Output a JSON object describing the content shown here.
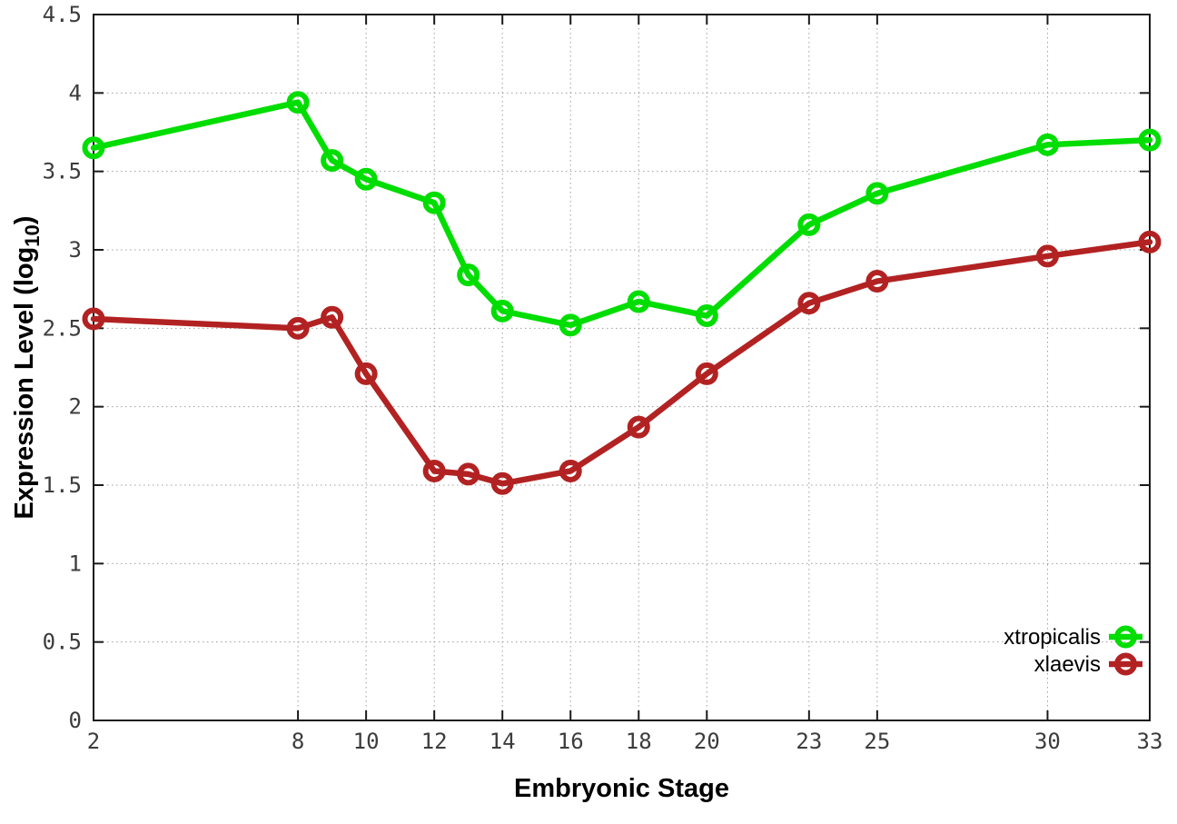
{
  "chart_data": {
    "type": "line",
    "title": "",
    "xlabel": "Embryonic Stage",
    "ylabel": {
      "prefix": "Expression Level (log",
      "subscript": "10",
      "suffix": ")"
    },
    "xlim": [
      2,
      33
    ],
    "ylim": [
      0,
      4.5
    ],
    "grid": true,
    "legend_position": "bottom-right",
    "x_ticks": [
      {
        "value": 2,
        "label": "2"
      },
      {
        "value": 8,
        "label": "8"
      },
      {
        "value": 10,
        "label": "10"
      },
      {
        "value": 12,
        "label": "12"
      },
      {
        "value": 14,
        "label": "14"
      },
      {
        "value": 16,
        "label": "16"
      },
      {
        "value": 18,
        "label": "18"
      },
      {
        "value": 20,
        "label": "20"
      },
      {
        "value": 23,
        "label": "23"
      },
      {
        "value": 25,
        "label": "25"
      },
      {
        "value": 30,
        "label": "30"
      },
      {
        "value": 33,
        "label": "33"
      }
    ],
    "y_ticks": [
      {
        "value": 0,
        "label": "0"
      },
      {
        "value": 0.5,
        "label": "0.5"
      },
      {
        "value": 1,
        "label": "1"
      },
      {
        "value": 1.5,
        "label": "1.5"
      },
      {
        "value": 2,
        "label": "2"
      },
      {
        "value": 2.5,
        "label": "2.5"
      },
      {
        "value": 3,
        "label": "3"
      },
      {
        "value": 3.5,
        "label": "3.5"
      },
      {
        "value": 4,
        "label": "4"
      },
      {
        "value": 4.5,
        "label": "4.5"
      }
    ],
    "x": [
      2,
      8,
      9,
      10,
      12,
      13,
      14,
      16,
      18,
      20,
      23,
      25,
      30,
      33
    ],
    "series": [
      {
        "name": "xtropicalis",
        "color": "#00dd00",
        "values": [
          3.65,
          3.94,
          3.57,
          3.45,
          3.3,
          2.84,
          2.61,
          2.52,
          2.67,
          2.58,
          3.16,
          3.36,
          3.67,
          3.7
        ]
      },
      {
        "name": "xlaevis",
        "color": "#b22222",
        "values": [
          2.56,
          2.5,
          2.57,
          2.21,
          1.59,
          1.57,
          1.51,
          1.59,
          1.87,
          2.21,
          2.66,
          2.8,
          2.96,
          3.05
        ]
      }
    ],
    "colors": {
      "background": "#ffffff",
      "axis": "#1a1a1a",
      "grid": "#9e9e9e",
      "tick_label": "#3c3c3c"
    }
  }
}
